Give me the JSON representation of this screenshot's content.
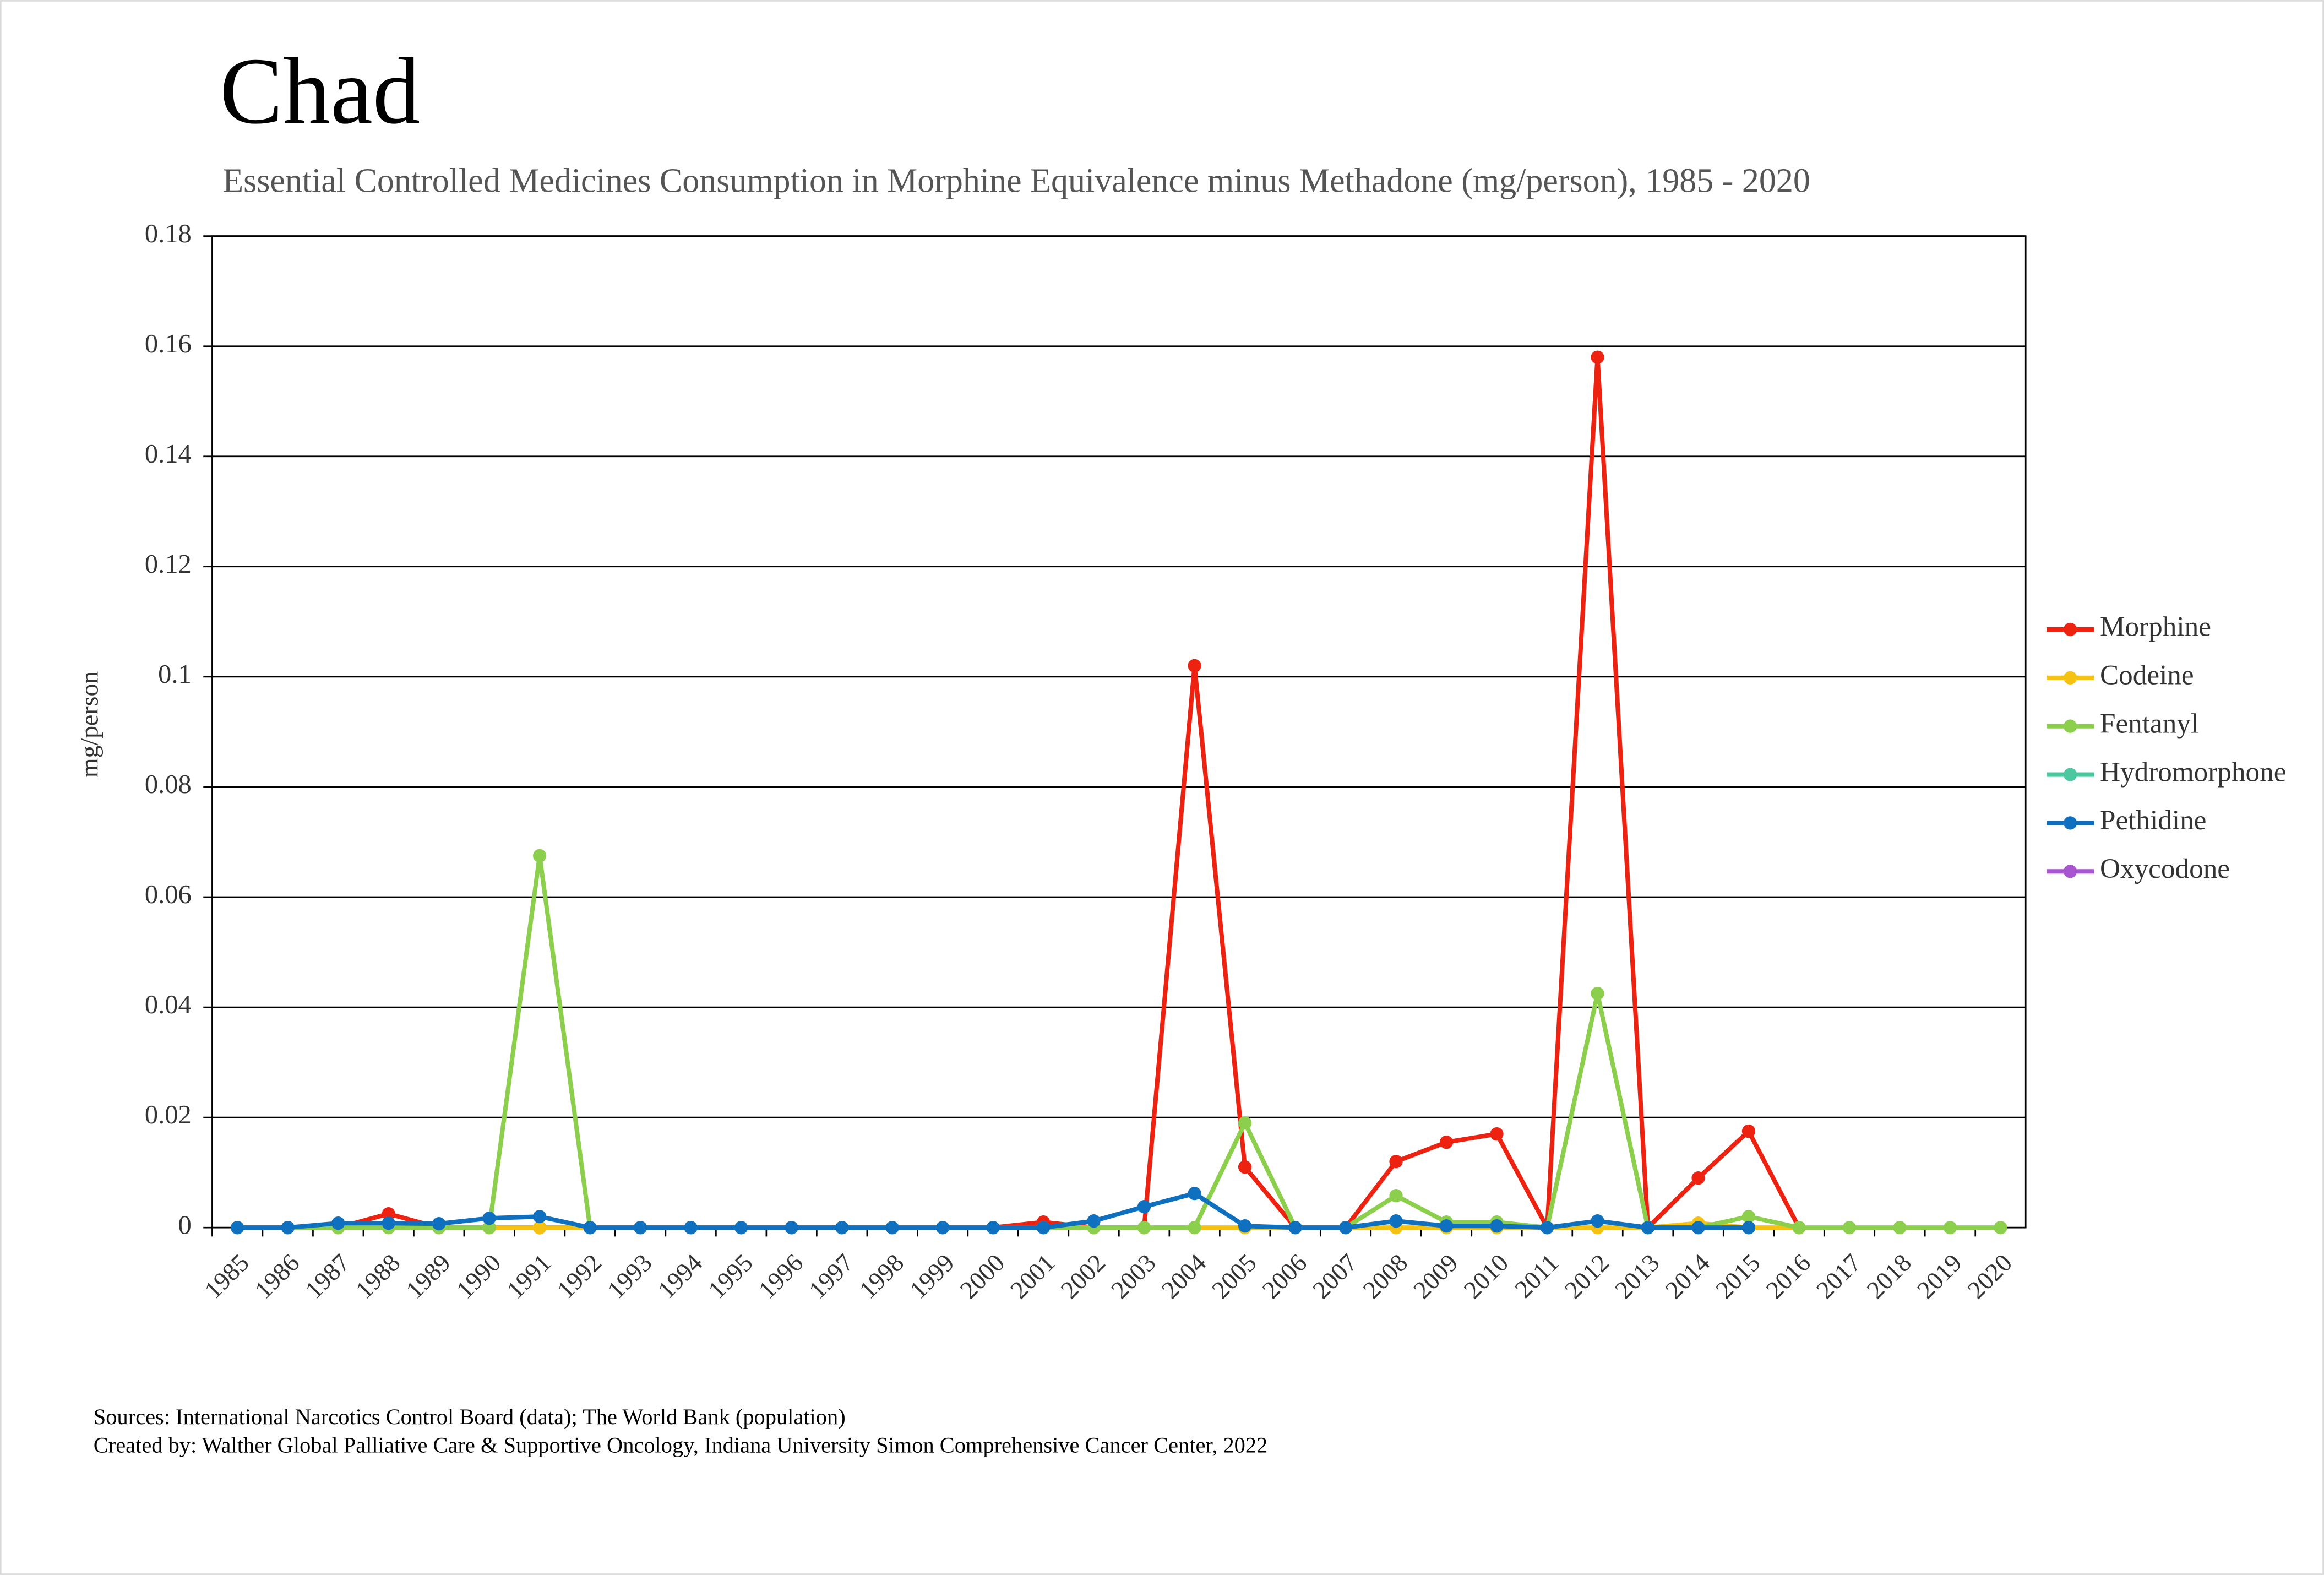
{
  "chart_data": {
    "type": "line",
    "title": "Chad",
    "subtitle": "Essential Controlled Medicines Consumption in Morphine Equivalence minus Methadone (mg/person), 1985 - 2020",
    "y_label": "mg/person",
    "categories": [
      "1985",
      "1986",
      "1987",
      "1988",
      "1989",
      "1990",
      "1991",
      "1992",
      "1993",
      "1994",
      "1995",
      "1996",
      "1997",
      "1998",
      "1999",
      "2000",
      "2001",
      "2002",
      "2003",
      "2004",
      "2005",
      "2006",
      "2007",
      "2008",
      "2009",
      "2010",
      "2011",
      "2012",
      "2013",
      "2014",
      "2015",
      "2016",
      "2017",
      "2018",
      "2019",
      "2020"
    ],
    "series": [
      {
        "name": "Morphine",
        "color": "#ee2211",
        "values": [
          0,
          0,
          0,
          0.0025,
          0,
          0,
          0,
          0,
          0,
          0,
          0,
          0,
          0,
          0,
          0,
          0,
          0.001,
          0,
          0,
          0.102,
          0.011,
          0,
          0,
          0.012,
          0.0155,
          0.017,
          0,
          0.158,
          0,
          0.009,
          0.0175,
          0,
          null,
          null,
          null,
          null
        ]
      },
      {
        "name": "Codeine",
        "color": "#f5c211",
        "values": [
          0,
          0,
          0,
          0,
          0,
          0,
          0,
          0,
          0,
          0,
          0,
          0,
          0,
          0,
          0,
          0,
          0,
          0,
          0,
          0,
          0,
          0,
          0,
          0,
          0,
          0,
          0,
          0,
          0,
          0.0008,
          0,
          0,
          null,
          null,
          null,
          null
        ]
      },
      {
        "name": "Fentanyl",
        "color": "#8ccf4d",
        "values": [
          0,
          0,
          0,
          0,
          0,
          0,
          0.0675,
          0,
          0,
          0,
          0,
          0,
          0,
          0,
          0,
          0,
          0,
          0,
          0,
          0,
          0.019,
          0,
          0,
          0.0058,
          0.001,
          0.001,
          0,
          0.0425,
          0,
          0,
          0.002,
          0,
          0,
          0,
          0,
          0
        ]
      },
      {
        "name": "Hydromorphone",
        "color": "#4dc7a0",
        "values": [
          null,
          null,
          null,
          null,
          null,
          null,
          null,
          null,
          null,
          null,
          null,
          null,
          null,
          null,
          null,
          null,
          null,
          null,
          null,
          null,
          null,
          null,
          null,
          null,
          null,
          null,
          null,
          null,
          null,
          null,
          null,
          null,
          null,
          null,
          null,
          null
        ]
      },
      {
        "name": "Pethidine",
        "color": "#1070c0",
        "values": [
          0,
          0,
          0.0008,
          0.0008,
          0.0007,
          0.0017,
          0.002,
          0,
          0,
          0,
          0,
          0,
          0,
          0,
          0,
          0,
          0,
          0.0012,
          0.0038,
          0.0062,
          0.0003,
          0,
          0,
          0.0012,
          0.0003,
          0.0003,
          0,
          0.0012,
          0,
          0,
          0,
          null,
          null,
          null,
          null,
          null
        ]
      },
      {
        "name": "Oxycodone",
        "color": "#a855d0",
        "values": [
          null,
          null,
          null,
          null,
          null,
          null,
          null,
          null,
          null,
          null,
          null,
          null,
          null,
          null,
          null,
          null,
          null,
          null,
          null,
          null,
          null,
          null,
          null,
          null,
          null,
          null,
          null,
          null,
          null,
          null,
          null,
          null,
          null,
          null,
          null,
          null
        ]
      }
    ],
    "ylim": [
      0,
      0.18
    ],
    "yticks": [
      0,
      0.02,
      0.04,
      0.06,
      0.08,
      0.1,
      0.12,
      0.14,
      0.16,
      0.18
    ],
    "grid": true,
    "legend": "right",
    "sources": "Sources: International Narcotics Control Board (data); The World Bank (population)",
    "credit": "Created by: Walther Global Palliative Care & Supportive Oncology, Indiana University Simon Comprehensive Cancer Center, 2022"
  }
}
